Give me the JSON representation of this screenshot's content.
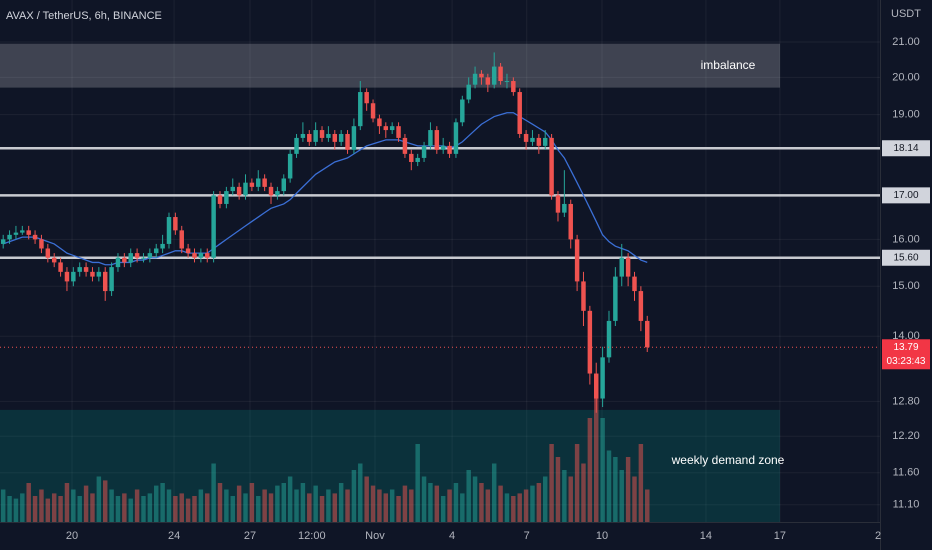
{
  "chart_data": {
    "type": "candlestick",
    "title": "AVAX / TetherUS, 6h, BINANCE",
    "y_axis_unit": "USDT",
    "log_scale": true,
    "grid": true,
    "up_color": "#26a69a",
    "down_color": "#ef5350",
    "open": [
      15.9,
      16.0,
      16.1,
      16.15,
      16.2,
      16.1,
      16.0,
      15.8,
      15.6,
      15.5,
      15.3,
      15.1,
      15.3,
      15.4,
      15.3,
      15.2,
      15.3,
      14.9,
      15.4,
      15.6,
      15.5,
      15.7,
      15.6,
      15.6,
      15.7,
      15.8,
      15.9,
      16.5,
      16.2,
      15.8,
      15.7,
      15.6,
      15.7,
      15.6,
      17.0,
      16.8,
      17.1,
      17.2,
      17.0,
      17.3,
      17.2,
      17.4,
      17.2,
      17.0,
      17.1,
      17.4,
      18.0,
      18.4,
      18.5,
      18.3,
      18.6,
      18.4,
      18.5,
      18.3,
      18.5,
      18.1,
      18.7,
      19.6,
      19.3,
      18.9,
      18.7,
      18.6,
      18.7,
      18.4,
      18.0,
      17.8,
      17.9,
      18.2,
      18.6,
      18.1,
      18.2,
      18.0,
      18.8,
      19.4,
      19.8,
      20.1,
      20.0,
      19.8,
      20.3,
      19.9,
      19.9,
      19.6,
      18.5,
      18.3,
      18.4,
      18.2,
      18.4,
      17.0,
      16.6,
      16.8,
      16.0,
      15.1,
      14.5,
      13.3,
      12.85,
      13.6,
      14.3,
      15.2,
      15.6,
      15.2,
      14.9,
      14.3
    ],
    "high": [
      16.1,
      16.2,
      16.3,
      16.3,
      16.3,
      16.2,
      16.1,
      15.9,
      15.7,
      15.6,
      15.4,
      15.4,
      15.5,
      15.5,
      15.4,
      15.4,
      15.4,
      15.5,
      15.7,
      15.7,
      15.8,
      15.8,
      15.7,
      15.8,
      15.9,
      16.1,
      16.6,
      16.6,
      16.3,
      15.9,
      15.8,
      15.8,
      15.8,
      17.1,
      17.1,
      17.2,
      17.4,
      17.3,
      17.5,
      17.4,
      17.6,
      17.5,
      17.3,
      17.2,
      17.5,
      18.1,
      18.5,
      18.8,
      18.6,
      18.8,
      18.7,
      18.7,
      18.6,
      18.6,
      18.6,
      18.9,
      19.9,
      19.7,
      19.4,
      19.0,
      18.8,
      18.8,
      18.8,
      18.5,
      18.1,
      18.0,
      18.3,
      18.8,
      18.7,
      18.4,
      18.3,
      18.9,
      19.5,
      20.0,
      20.3,
      20.2,
      20.1,
      20.7,
      20.4,
      20.1,
      20.0,
      19.7,
      18.6,
      18.6,
      18.5,
      18.6,
      18.5,
      17.1,
      17.6,
      16.9,
      16.1,
      15.3,
      14.6,
      13.5,
      13.8,
      14.5,
      15.4,
      15.9,
      15.7,
      15.3,
      15.0,
      14.4
    ],
    "low": [
      15.8,
      15.9,
      16.0,
      16.1,
      16.0,
      15.9,
      15.7,
      15.5,
      15.4,
      15.2,
      14.9,
      15.0,
      15.2,
      15.2,
      15.1,
      15.1,
      14.7,
      14.8,
      15.3,
      15.4,
      15.4,
      15.5,
      15.5,
      15.5,
      15.6,
      15.7,
      15.8,
      16.1,
      15.7,
      15.6,
      15.5,
      15.5,
      15.5,
      15.5,
      16.7,
      16.7,
      17.0,
      16.9,
      16.9,
      17.1,
      17.1,
      17.1,
      16.8,
      16.9,
      17.0,
      17.3,
      17.9,
      18.3,
      18.2,
      18.2,
      18.3,
      18.3,
      18.1,
      18.2,
      18.0,
      18.0,
      18.6,
      19.1,
      18.8,
      18.5,
      18.4,
      18.5,
      18.3,
      17.9,
      17.6,
      17.7,
      17.8,
      18.1,
      18.0,
      18.0,
      17.9,
      17.9,
      18.7,
      19.3,
      19.7,
      19.8,
      19.6,
      19.7,
      19.8,
      19.7,
      19.5,
      18.4,
      18.1,
      18.2,
      18.0,
      18.1,
      16.9,
      16.4,
      16.5,
      15.8,
      14.9,
      14.2,
      13.1,
      12.6,
      12.7,
      13.5,
      14.2,
      15.0,
      15.0,
      14.7,
      14.1,
      13.7
    ],
    "close": [
      16.0,
      16.1,
      16.15,
      16.2,
      16.1,
      16.0,
      15.8,
      15.6,
      15.5,
      15.3,
      15.1,
      15.3,
      15.4,
      15.3,
      15.2,
      15.3,
      14.9,
      15.4,
      15.6,
      15.5,
      15.7,
      15.6,
      15.6,
      15.7,
      15.8,
      15.9,
      16.5,
      16.2,
      15.8,
      15.7,
      15.6,
      15.7,
      15.6,
      17.0,
      16.8,
      17.1,
      17.2,
      17.0,
      17.3,
      17.2,
      17.4,
      17.2,
      17.0,
      17.1,
      17.4,
      18.0,
      18.4,
      18.5,
      18.3,
      18.6,
      18.4,
      18.5,
      18.3,
      18.5,
      18.1,
      18.7,
      19.6,
      19.3,
      18.9,
      18.7,
      18.6,
      18.7,
      18.4,
      18.0,
      17.8,
      17.9,
      18.2,
      18.6,
      18.1,
      18.2,
      18.0,
      18.8,
      19.4,
      19.8,
      20.1,
      20.0,
      19.8,
      20.3,
      19.9,
      19.9,
      19.6,
      18.5,
      18.3,
      18.4,
      18.2,
      18.4,
      17.0,
      16.6,
      16.8,
      16.0,
      15.1,
      14.5,
      13.3,
      12.85,
      13.6,
      14.3,
      15.2,
      15.6,
      15.2,
      14.9,
      14.3,
      13.79
    ],
    "volume": [
      25,
      20,
      18,
      22,
      30,
      20,
      25,
      18,
      22,
      20,
      30,
      25,
      20,
      28,
      22,
      35,
      32,
      25,
      20,
      22,
      18,
      25,
      20,
      22,
      28,
      30,
      25,
      20,
      22,
      18,
      20,
      25,
      22,
      45,
      30,
      25,
      20,
      28,
      22,
      30,
      20,
      25,
      22,
      28,
      30,
      35,
      25,
      30,
      22,
      28,
      20,
      25,
      22,
      30,
      25,
      40,
      45,
      35,
      28,
      25,
      22,
      25,
      20,
      28,
      25,
      60,
      35,
      30,
      28,
      20,
      25,
      30,
      22,
      40,
      35,
      30,
      25,
      45,
      28,
      22,
      20,
      22,
      25,
      28,
      30,
      35,
      60,
      50,
      40,
      35,
      60,
      45,
      80,
      100,
      80,
      55,
      50,
      40,
      50,
      35,
      60,
      25
    ],
    "moving_average": {
      "color": "#3b6fd6",
      "values": [
        15.9,
        15.95,
        16.0,
        16.05,
        16.05,
        16.05,
        16.0,
        15.95,
        15.9,
        15.8,
        15.7,
        15.65,
        15.6,
        15.55,
        15.5,
        15.5,
        15.45,
        15.45,
        15.5,
        15.5,
        15.5,
        15.55,
        15.55,
        15.6,
        15.6,
        15.65,
        15.7,
        15.75,
        15.75,
        15.7,
        15.7,
        15.7,
        15.7,
        15.8,
        15.9,
        16.0,
        16.1,
        16.2,
        16.3,
        16.4,
        16.5,
        16.6,
        16.7,
        16.75,
        16.8,
        16.9,
        17.05,
        17.2,
        17.35,
        17.5,
        17.6,
        17.7,
        17.8,
        17.85,
        17.9,
        18.0,
        18.1,
        18.2,
        18.25,
        18.3,
        18.35,
        18.35,
        18.35,
        18.3,
        18.25,
        18.2,
        18.2,
        18.2,
        18.2,
        18.2,
        18.15,
        18.2,
        18.3,
        18.45,
        18.6,
        18.75,
        18.85,
        18.95,
        19.0,
        19.05,
        19.05,
        18.95,
        18.85,
        18.75,
        18.65,
        18.55,
        18.35,
        18.1,
        17.9,
        17.6,
        17.3,
        17.0,
        16.7,
        16.4,
        16.1,
        15.95,
        15.85,
        15.8,
        15.75,
        15.65,
        15.55,
        15.5
      ]
    },
    "xlim": [
      -0.5,
      137.5
    ],
    "xticks": [
      {
        "value": 10.8,
        "label": "20"
      },
      {
        "value": 26.8,
        "label": "24"
      },
      {
        "value": 38.7,
        "label": "27"
      },
      {
        "value": 48.4,
        "label": "12:00"
      },
      {
        "value": 58.3,
        "label": "Nov"
      },
      {
        "value": 70.4,
        "label": "4"
      },
      {
        "value": 82.1,
        "label": "7"
      },
      {
        "value": 93.9,
        "label": "10"
      },
      {
        "value": 110.2,
        "label": "14"
      },
      {
        "value": 121.8,
        "label": "17"
      },
      {
        "value": 137.2,
        "label": "2"
      }
    ],
    "ylim": [
      10.84,
      22.25
    ],
    "yticks": [
      {
        "value": 21,
        "label": "21.00"
      },
      {
        "value": 20,
        "label": "20.00"
      },
      {
        "value": 19,
        "label": "19.00"
      },
      {
        "value": 16,
        "label": "16.00"
      },
      {
        "value": 15,
        "label": "15.00"
      },
      {
        "value": 14,
        "label": "14.00"
      },
      {
        "value": 12.8,
        "label": "12.80"
      },
      {
        "value": 12.2,
        "label": "12.20"
      },
      {
        "value": 11.6,
        "label": "11.60"
      },
      {
        "value": 11.1,
        "label": "11.10"
      }
    ],
    "levels": [
      {
        "value": 18.14,
        "label": "18.14"
      },
      {
        "value": 17,
        "label": "17.00"
      },
      {
        "value": 15.6,
        "label": "15.60"
      }
    ],
    "last_price": {
      "value": 13.79,
      "label": "13.79",
      "countdown": "03:23:43"
    },
    "zones": [
      {
        "label": "imbalance",
        "top": 20.95,
        "bottom": 19.72,
        "color": "rgba(255,255,255,0.2)"
      },
      {
        "label": "weekly demand zone",
        "top": 12.65,
        "color": "rgba(0,150,136,0.22)"
      }
    ]
  }
}
